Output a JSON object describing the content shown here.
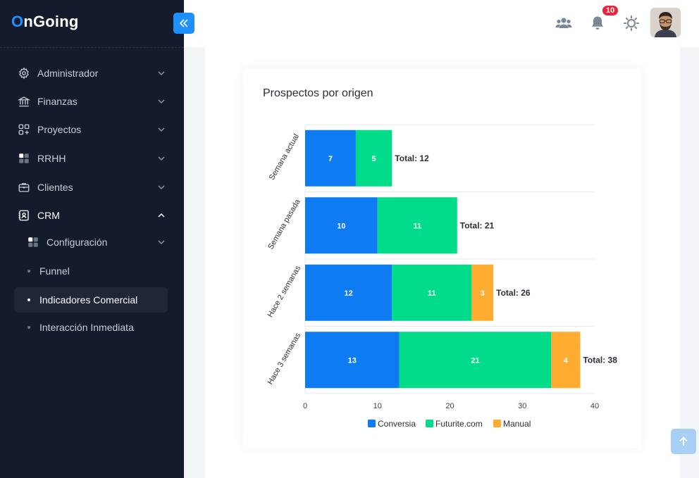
{
  "brand": {
    "name_first": "O",
    "name_rest": "nGoing"
  },
  "sidebar": {
    "items": [
      {
        "label": "Administrador",
        "icon": "gear-icon"
      },
      {
        "label": "Finanzas",
        "icon": "bank-icon"
      },
      {
        "label": "Proyectos",
        "icon": "apps-plus-icon"
      },
      {
        "label": "RRHH",
        "icon": "grid-icon"
      },
      {
        "label": "Clientes",
        "icon": "briefcase-icon"
      },
      {
        "label": "CRM",
        "icon": "contact-card-icon"
      }
    ],
    "crm_children": [
      {
        "label": "Configuración",
        "icon": "grid-icon"
      },
      {
        "label": "Funnel"
      },
      {
        "label": "Indicadores Comercial"
      },
      {
        "label": "Interacción Inmediata"
      }
    ]
  },
  "topbar": {
    "notifications_count": "10",
    "icons": [
      "users-icon",
      "bell-icon",
      "sun-icon"
    ]
  },
  "card": {
    "title": "Prospectos por origen"
  },
  "colors": {
    "conversia": "#0d7bf2",
    "futurite": "#00dc8a",
    "manual": "#ffac30",
    "accent": "#1e90ff",
    "sidebar_bg": "#141b2c"
  },
  "chart_data": {
    "type": "bar",
    "orientation": "horizontal",
    "stacked": true,
    "title": "Prospectos por origen",
    "categories": [
      "Semana actual",
      "Semana pasada",
      "Hace 2 semanas",
      "Hace 3 semanas"
    ],
    "series": [
      {
        "name": "Conversia",
        "values": [
          7,
          10,
          12,
          13
        ]
      },
      {
        "name": "Futurite.com",
        "values": [
          5,
          11,
          11,
          21
        ]
      },
      {
        "name": "Manual",
        "values": [
          0,
          0,
          3,
          4
        ]
      }
    ],
    "totals": [
      "Total: 12",
      "Total: 21",
      "Total: 26",
      "Total: 38"
    ],
    "xlim": [
      0,
      40
    ],
    "xticks": [
      0,
      10,
      20,
      30,
      40
    ],
    "grid": true,
    "legend": "bottom"
  }
}
